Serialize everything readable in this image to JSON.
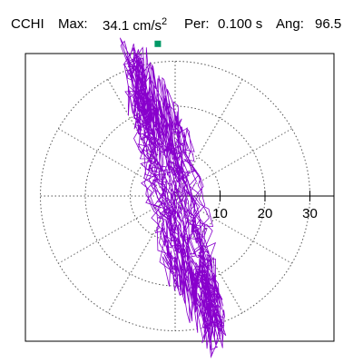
{
  "header": {
    "station": "CCHI",
    "max_label": "Max:",
    "max_value": "34.1 cm/s",
    "max_exp": "2",
    "per_label": "Per:",
    "per_value": "0.100 s",
    "ang_label": "Ang:",
    "ang_value": "96.5"
  },
  "chart_data": {
    "type": "scatter",
    "polar": true,
    "grid": true,
    "radial_ticks": [
      10,
      20,
      30
    ],
    "rlim": [
      0,
      37
    ],
    "max_amplitude": 34.1,
    "max_angle_deg": 96.5,
    "period_s": 0.1,
    "marker_color": "#009966",
    "trace_color": "#8800cc",
    "grid_color": "#555555"
  }
}
